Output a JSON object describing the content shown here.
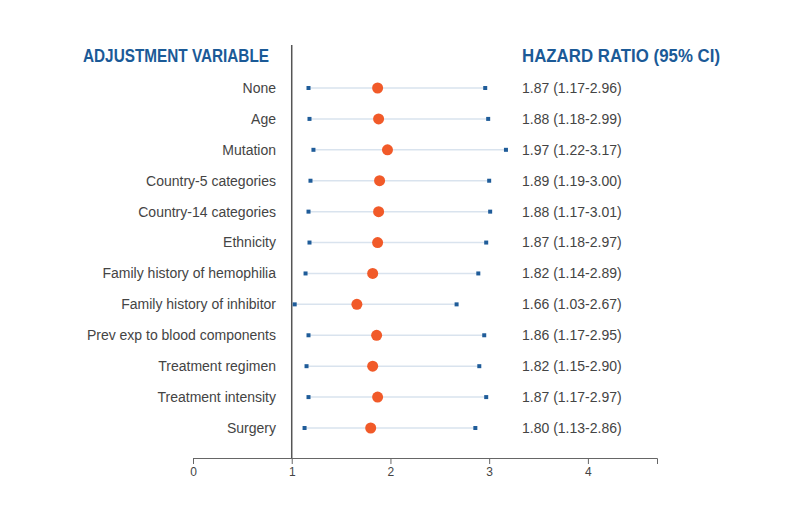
{
  "chart_data": {
    "type": "forest",
    "orientation": "horizontal",
    "y_label": "ADJUSTMENT VARIABLE",
    "x_label": "HAZARD RATIO (95% CI)",
    "categories": [
      "None",
      "Age",
      "Mutation",
      "Country-5 categories",
      "Country-14 categories",
      "Ethnicity",
      "Family history of hemophilia",
      "Family history of inhibitor",
      "Prev exp to blood components",
      "Treatment regimen",
      "Treatment intensity",
      "Surgery"
    ],
    "values": [
      1.87,
      1.88,
      1.97,
      1.89,
      1.88,
      1.87,
      1.82,
      1.66,
      1.86,
      1.82,
      1.87,
      1.8
    ],
    "lower": [
      1.17,
      1.18,
      1.22,
      1.19,
      1.17,
      1.18,
      1.14,
      1.03,
      1.17,
      1.15,
      1.17,
      1.13
    ],
    "upper": [
      2.96,
      2.99,
      3.17,
      3.0,
      3.01,
      2.97,
      2.89,
      2.67,
      2.95,
      2.9,
      2.97,
      2.86
    ],
    "value_labels": [
      "1.87 (1.17-2.96)",
      "1.88 (1.18-2.99)",
      "1.97 (1.22-3.17)",
      "1.89 (1.19-3.00)",
      "1.88 (1.17-3.01)",
      "1.87 (1.18-2.97)",
      "1.82 (1.14-2.89)",
      "1.66 (1.03-2.67)",
      "1.86 (1.17-2.95)",
      "1.82 (1.15-2.90)",
      "1.87 (1.17-2.97)",
      "1.80 (1.13-2.86)"
    ],
    "data_labels": true,
    "reference": 1,
    "xlim": [
      0,
      4.7
    ],
    "xticks": [
      0,
      1,
      2,
      3,
      4
    ],
    "color": "#f15a29"
  }
}
